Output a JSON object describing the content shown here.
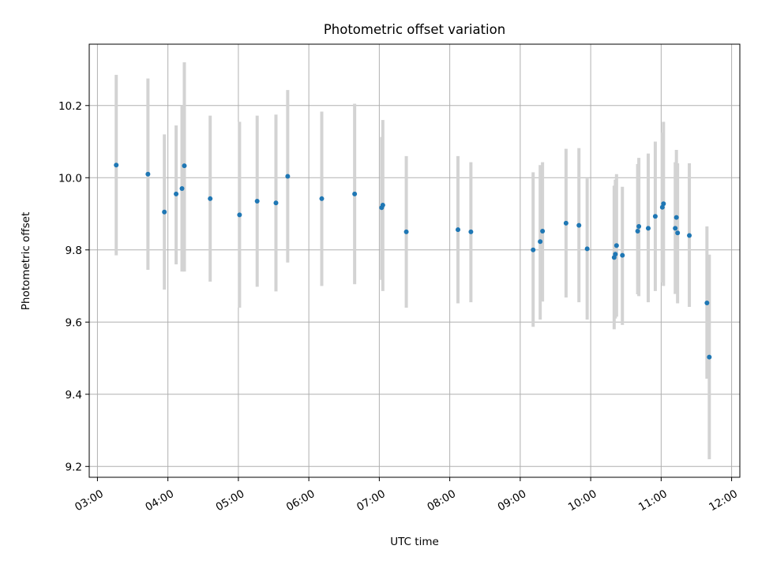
{
  "chart_data": {
    "type": "scatter",
    "title": "Photometric offset variation",
    "xlabel": "UTC time",
    "ylabel": "Photometric offset",
    "xlim": [
      "02:53",
      "12:07"
    ],
    "ylim": [
      9.17,
      10.37
    ],
    "xticks": [
      "03:00",
      "04:00",
      "05:00",
      "06:00",
      "07:00",
      "08:00",
      "09:00",
      "10:00",
      "11:00",
      "12:00"
    ],
    "yticks": [
      9.2,
      9.4,
      9.6,
      9.8,
      10.0,
      10.2
    ],
    "grid": true,
    "colors": {
      "points": "#1f77b4",
      "errorbars": "#d3d3d3",
      "grid": "#b0b0b0"
    },
    "points": [
      {
        "t": "03:16",
        "y": 10.035,
        "lo": 9.785,
        "hi": 10.285
      },
      {
        "t": "03:43",
        "y": 10.01,
        "lo": 9.745,
        "hi": 10.275
      },
      {
        "t": "03:57",
        "y": 9.905,
        "lo": 9.69,
        "hi": 10.12
      },
      {
        "t": "04:07",
        "y": 9.955,
        "lo": 9.76,
        "hi": 10.145
      },
      {
        "t": "04:12",
        "y": 9.97,
        "lo": 9.74,
        "hi": 10.2
      },
      {
        "t": "04:14",
        "y": 10.033,
        "lo": 9.74,
        "hi": 10.32
      },
      {
        "t": "04:36",
        "y": 9.942,
        "lo": 9.712,
        "hi": 10.172
      },
      {
        "t": "05:01",
        "y": 9.897,
        "lo": 9.64,
        "hi": 10.155
      },
      {
        "t": "05:16",
        "y": 9.935,
        "lo": 9.698,
        "hi": 10.172
      },
      {
        "t": "05:32",
        "y": 9.93,
        "lo": 9.685,
        "hi": 10.175
      },
      {
        "t": "05:42",
        "y": 10.004,
        "lo": 9.765,
        "hi": 10.243
      },
      {
        "t": "06:11",
        "y": 9.942,
        "lo": 9.7,
        "hi": 10.183
      },
      {
        "t": "06:39",
        "y": 9.955,
        "lo": 9.705,
        "hi": 10.205
      },
      {
        "t": "07:02",
        "y": 9.917,
        "lo": 9.717,
        "hi": 10.113
      },
      {
        "t": "07:03",
        "y": 9.924,
        "lo": 9.686,
        "hi": 10.16
      },
      {
        "t": "07:23",
        "y": 9.85,
        "lo": 9.64,
        "hi": 10.06
      },
      {
        "t": "08:07",
        "y": 9.856,
        "lo": 9.652,
        "hi": 10.06
      },
      {
        "t": "08:18",
        "y": 9.85,
        "lo": 9.655,
        "hi": 10.043
      },
      {
        "t": "09:11",
        "y": 9.8,
        "lo": 9.587,
        "hi": 10.015
      },
      {
        "t": "09:17",
        "y": 9.823,
        "lo": 9.607,
        "hi": 10.035
      },
      {
        "t": "09:19",
        "y": 9.852,
        "lo": 9.657,
        "hi": 10.043
      },
      {
        "t": "09:39",
        "y": 9.874,
        "lo": 9.668,
        "hi": 10.08
      },
      {
        "t": "09:50",
        "y": 9.868,
        "lo": 9.655,
        "hi": 10.082
      },
      {
        "t": "09:57",
        "y": 9.803,
        "lo": 9.607,
        "hi": 9.998
      },
      {
        "t": "10:20",
        "y": 9.779,
        "lo": 9.58,
        "hi": 9.978
      },
      {
        "t": "10:21",
        "y": 9.788,
        "lo": 9.61,
        "hi": 9.995
      },
      {
        "t": "10:22",
        "y": 9.812,
        "lo": 9.615,
        "hi": 10.01
      },
      {
        "t": "10:27",
        "y": 9.785,
        "lo": 9.592,
        "hi": 9.975
      },
      {
        "t": "10:40",
        "y": 9.852,
        "lo": 9.677,
        "hi": 10.038
      },
      {
        "t": "10:41",
        "y": 9.865,
        "lo": 9.672,
        "hi": 10.055
      },
      {
        "t": "10:49",
        "y": 9.86,
        "lo": 9.655,
        "hi": 10.067
      },
      {
        "t": "10:55",
        "y": 9.893,
        "lo": 9.686,
        "hi": 10.1
      },
      {
        "t": "11:01",
        "y": 9.918,
        "lo": 9.71,
        "hi": 10.125
      },
      {
        "t": "11:02",
        "y": 9.928,
        "lo": 9.7,
        "hi": 10.155
      },
      {
        "t": "11:12",
        "y": 9.86,
        "lo": 9.678,
        "hi": 10.043
      },
      {
        "t": "11:13",
        "y": 9.89,
        "lo": 9.693,
        "hi": 10.077
      },
      {
        "t": "11:14",
        "y": 9.847,
        "lo": 9.652,
        "hi": 10.04
      },
      {
        "t": "11:24",
        "y": 9.84,
        "lo": 9.642,
        "hi": 10.04
      },
      {
        "t": "11:39",
        "y": 9.653,
        "lo": 9.443,
        "hi": 9.865
      },
      {
        "t": "11:41",
        "y": 9.503,
        "lo": 9.22,
        "hi": 9.787
      }
    ]
  }
}
